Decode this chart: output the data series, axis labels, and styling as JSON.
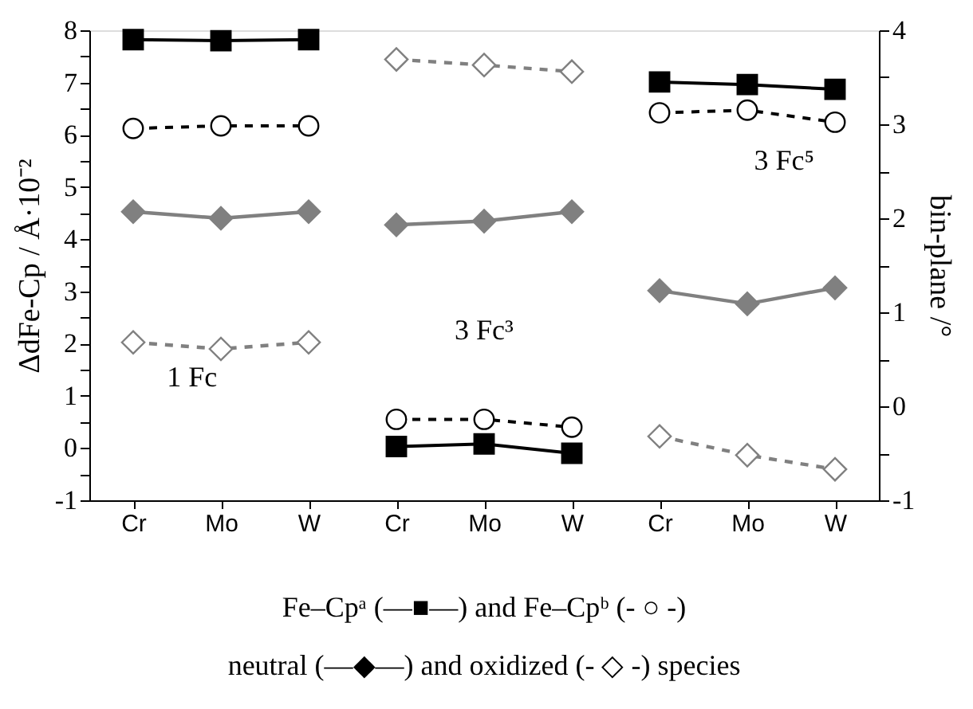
{
  "chart_data": {
    "type": "line",
    "categories": [
      "Cr",
      "Mo",
      "W",
      "Cr",
      "Mo",
      "W",
      "Cr",
      "Mo",
      "W"
    ],
    "ylabel": "ΔdFe-Cp / Å·10⁻²",
    "y2label": "bin-plane /°",
    "ylim": [
      -1,
      8
    ],
    "yticks": [
      -1,
      {
        "value": -0.5,
        "label": null
      },
      0,
      {
        "value": 0.5,
        "label": null
      },
      1,
      {
        "value": 1.5,
        "label": null
      },
      2,
      {
        "value": 2.5,
        "label": null
      },
      3,
      {
        "value": 3.5,
        "label": null
      },
      4,
      {
        "value": 4.5,
        "label": null
      },
      5,
      {
        "value": 5.5,
        "label": null
      },
      6,
      {
        "value": 6.5,
        "label": null
      },
      7,
      {
        "value": 7.5,
        "label": null
      },
      8
    ],
    "y2lim": [
      -1,
      4
    ],
    "y2ticks": [
      -1,
      {
        "value": -0.5,
        "label": null
      },
      0,
      {
        "value": 0.5,
        "label": null
      },
      1,
      {
        "value": 1.5,
        "label": null
      },
      2,
      {
        "value": 2.5,
        "label": null
      },
      3,
      {
        "value": 3.5,
        "label": null
      },
      4
    ],
    "grid": false,
    "series": [
      {
        "color": "#000000",
        "marker": "square",
        "line_style": "solid",
        "values": [
          7.82,
          7.8,
          7.82,
          null,
          null,
          null,
          null,
          null,
          null
        ]
      },
      {
        "color": "#000000",
        "marker": "square",
        "line_style": "solid",
        "values": [
          null,
          null,
          null,
          0.03,
          0.08,
          -0.1,
          null,
          null,
          null
        ]
      },
      {
        "color": "#000000",
        "marker": "square",
        "line_style": "solid",
        "values": [
          null,
          null,
          null,
          null,
          null,
          null,
          7.01,
          6.96,
          6.87
        ]
      },
      {
        "color": "#000000",
        "marker": "circle",
        "line_style": "dashed",
        "values": [
          6.12,
          6.17,
          6.17,
          null,
          null,
          null,
          null,
          null,
          null
        ]
      },
      {
        "color": "#000000",
        "marker": "circle",
        "line_style": "dashed",
        "values": [
          null,
          null,
          null,
          0.55,
          0.55,
          0.4,
          null,
          null,
          null
        ]
      },
      {
        "color": "#000000",
        "marker": "circle",
        "line_style": "dashed",
        "values": [
          null,
          null,
          null,
          null,
          null,
          null,
          6.42,
          6.47,
          6.24
        ]
      },
      {
        "color": "#808080",
        "marker": "diamond",
        "line_style": "solid",
        "axis": "y2",
        "values": [
          2.07,
          2.0,
          2.07,
          null,
          null,
          null,
          null,
          null,
          null
        ]
      },
      {
        "color": "#808080",
        "marker": "diamond",
        "line_style": "solid",
        "axis": "y2",
        "values": [
          null,
          null,
          null,
          1.93,
          1.97,
          2.07,
          null,
          null,
          null
        ]
      },
      {
        "color": "#808080",
        "marker": "diamond",
        "line_style": "solid",
        "axis": "y2",
        "values": [
          null,
          null,
          null,
          null,
          null,
          null,
          1.23,
          1.09,
          1.26
        ]
      },
      {
        "color": "#808080",
        "marker": "diamond",
        "line_style": "dashed",
        "axis": "y2",
        "values": [
          0.68,
          0.61,
          0.68,
          null,
          null,
          null,
          null,
          null,
          null
        ]
      },
      {
        "color": "#808080",
        "marker": "diamond",
        "line_style": "dashed",
        "axis": "y2",
        "values": [
          null,
          null,
          null,
          3.69,
          3.63,
          3.56,
          null,
          null,
          null
        ]
      },
      {
        "color": "#808080",
        "marker": "diamond",
        "line_style": "dashed",
        "axis": "y2",
        "values": [
          null,
          null,
          null,
          null,
          null,
          null,
          -0.32,
          -0.52,
          -0.67
        ]
      }
    ],
    "annotations": [
      "1 Fc",
      "3 Fc³",
      "3 Fc⁵",
      "Fe–Cpᵃ (—■—) and Fe–Cpᵇ (- ○ -)",
      "neutral (—◆—) and oxidized (- ◇ -) species"
    ]
  }
}
